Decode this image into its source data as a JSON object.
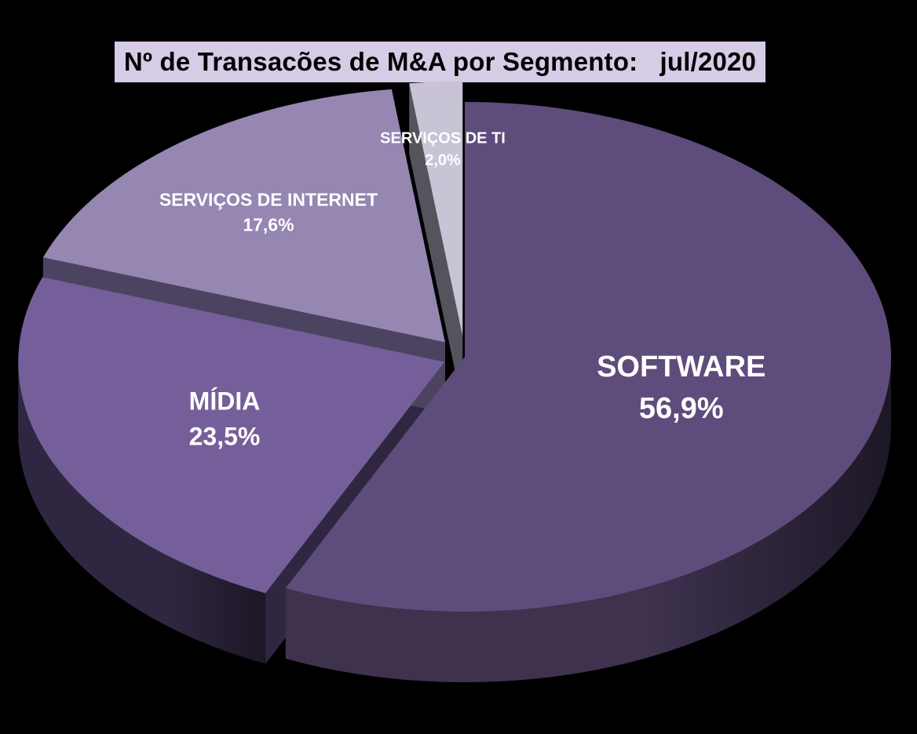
{
  "chart_data": {
    "type": "pie",
    "title": "Nº de Transacões de M&A por Segmento:   jul/2020",
    "slices": [
      {
        "name": "SOFTWARE",
        "value": 56.9,
        "label": "56,9%",
        "top_color": "#5e4c7c",
        "side_color": "#3e324f"
      },
      {
        "name": "MÍDIA",
        "value": 23.5,
        "label": "23,5%",
        "top_color": "#745f9a",
        "side_color": "#2f2741"
      },
      {
        "name": "SERVIÇOS DE INTERNET",
        "value": 17.6,
        "label": "17,6%",
        "top_color": "#9586b2",
        "side_color": "#4c4360"
      },
      {
        "name": "SERVIÇOS DE TI",
        "value": 2.0,
        "label": "2,0%",
        "top_color": "#c9c3d6",
        "side_color": "#55535c"
      }
    ],
    "legend": "none",
    "style": "3d-exploded",
    "background": "#000000"
  }
}
